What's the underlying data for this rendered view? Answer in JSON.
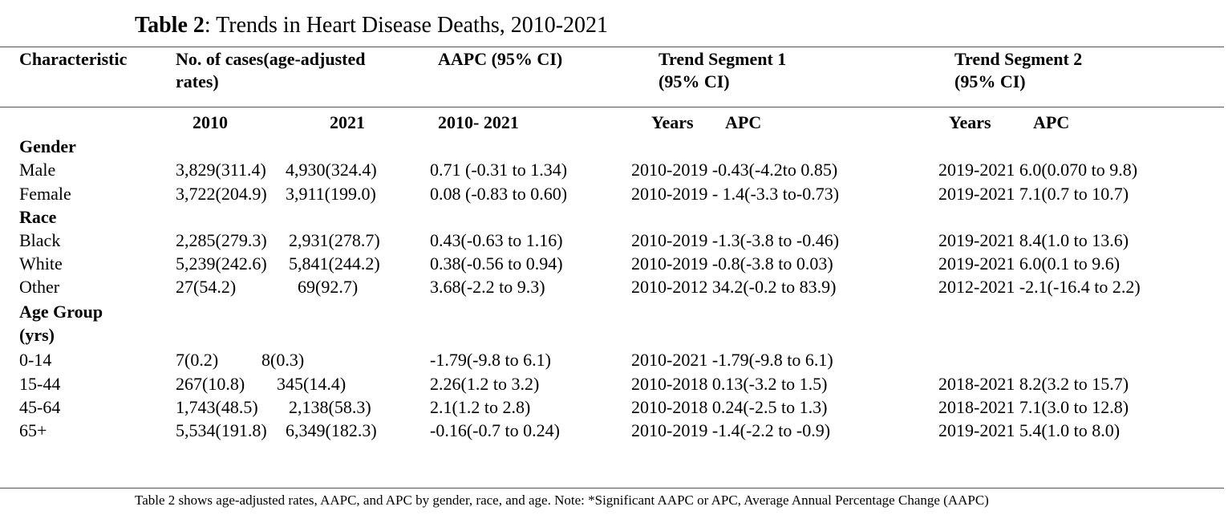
{
  "title": {
    "prefix": "Table 2",
    "text": ": Trends in Heart Disease Deaths, 2010-2021"
  },
  "headers": {
    "characteristic": "Characteristic",
    "cases_l1": "No. of cases(age-adjusted",
    "cases_l2": "rates)",
    "aapc": "AAPC (95% CI)",
    "seg1_l1": "Trend Segment 1",
    "seg1_l2": "(95% CI)",
    "seg2_l1": "Trend Segment 2",
    "seg2_l2": "(95% CI)"
  },
  "subheaders": {
    "y2010": "2010",
    "y2021": "2021",
    "aapc_range": "2010- 2021",
    "seg1_years": "Years",
    "seg1_apc": "APC",
    "seg2_years": "Years",
    "seg2_apc": "APC"
  },
  "sections": {
    "gender": "Gender",
    "race": "Race",
    "age_l1": "Age Group",
    "age_l2": "(yrs)"
  },
  "rows": [
    {
      "label": "Male",
      "c2010": "3,829(311.4)",
      "c2021": "4,930(324.4)",
      "aapc": "0.71 (-0.31 to 1.34)",
      "seg1": "2010-2019 -0.43(-4.2to 0.85)",
      "seg2": "2019-2021 6.0(0.070 to 9.8)"
    },
    {
      "label": "Female",
      "c2010": "3,722(204.9)",
      "c2021": "3,911(199.0)",
      "aapc": "0.08 (-0.83 to 0.60)",
      "seg1": "2010-2019 - 1.4(-3.3 to-0.73)",
      "seg2": "2019-2021 7.1(0.7 to 10.7)"
    },
    {
      "label": "Black",
      "c2010": "2,285(279.3)",
      "c2021": "2,931(278.7)",
      "aapc": "0.43(-0.63 to 1.16)",
      "seg1": "2010-2019 -1.3(-3.8 to -0.46)",
      "seg2": "2019-2021 8.4(1.0 to 13.6)"
    },
    {
      "label": "White",
      "c2010": "5,239(242.6)",
      "c2021": "5,841(244.2)",
      "aapc": "0.38(-0.56 to 0.94)",
      "seg1": "2010-2019 -0.8(-3.8 to 0.03)",
      "seg2": "2019-2021 6.0(0.1 to 9.6)"
    },
    {
      "label": "Other",
      "c2010": "27(54.2)",
      "c2021": "69(92.7)",
      "aapc": "3.68(-2.2 to 9.3)",
      "seg1": "2010-2012 34.2(-0.2 to 83.9)",
      "seg2": "2012-2021 -2.1(-16.4 to 2.2)"
    },
    {
      "label": "0-14",
      "c2010": "7(0.2)",
      "c2021": "8(0.3)",
      "aapc": "-1.79(-9.8 to 6.1)",
      "seg1": "2010-2021 -1.79(-9.8 to 6.1)",
      "seg2": ""
    },
    {
      "label": "15-44",
      "c2010": "267(10.8)",
      "c2021": "345(14.4)",
      "aapc": "2.26(1.2 to 3.2)",
      "seg1": "2010-2018 0.13(-3.2 to 1.5)",
      "seg2": "2018-2021 8.2(3.2 to 15.7)"
    },
    {
      "label": "45-64",
      "c2010": "1,743(48.5)",
      "c2021": "2,138(58.3)",
      "aapc": "2.1(1.2 to 2.8)",
      "seg1": "2010-2018 0.24(-2.5 to 1.3)",
      "seg2": "2018-2021 7.1(3.0 to 12.8)"
    },
    {
      "label": "65+",
      "c2010": "5,534(191.8)",
      "c2021": "6,349(182.3)",
      "aapc": "-0.16(-0.7 to 0.24)",
      "seg1": "2010-2019 -1.4(-2.2 to -0.9)",
      "seg2": "2019-2021 5.4(1.0 to 8.0)"
    }
  ],
  "note": "Table 2 shows age-adjusted rates, AAPC, and APC by gender, race, and age.  Note: *Significant AAPC or APC, Average Annual Percentage Change (AAPC)"
}
